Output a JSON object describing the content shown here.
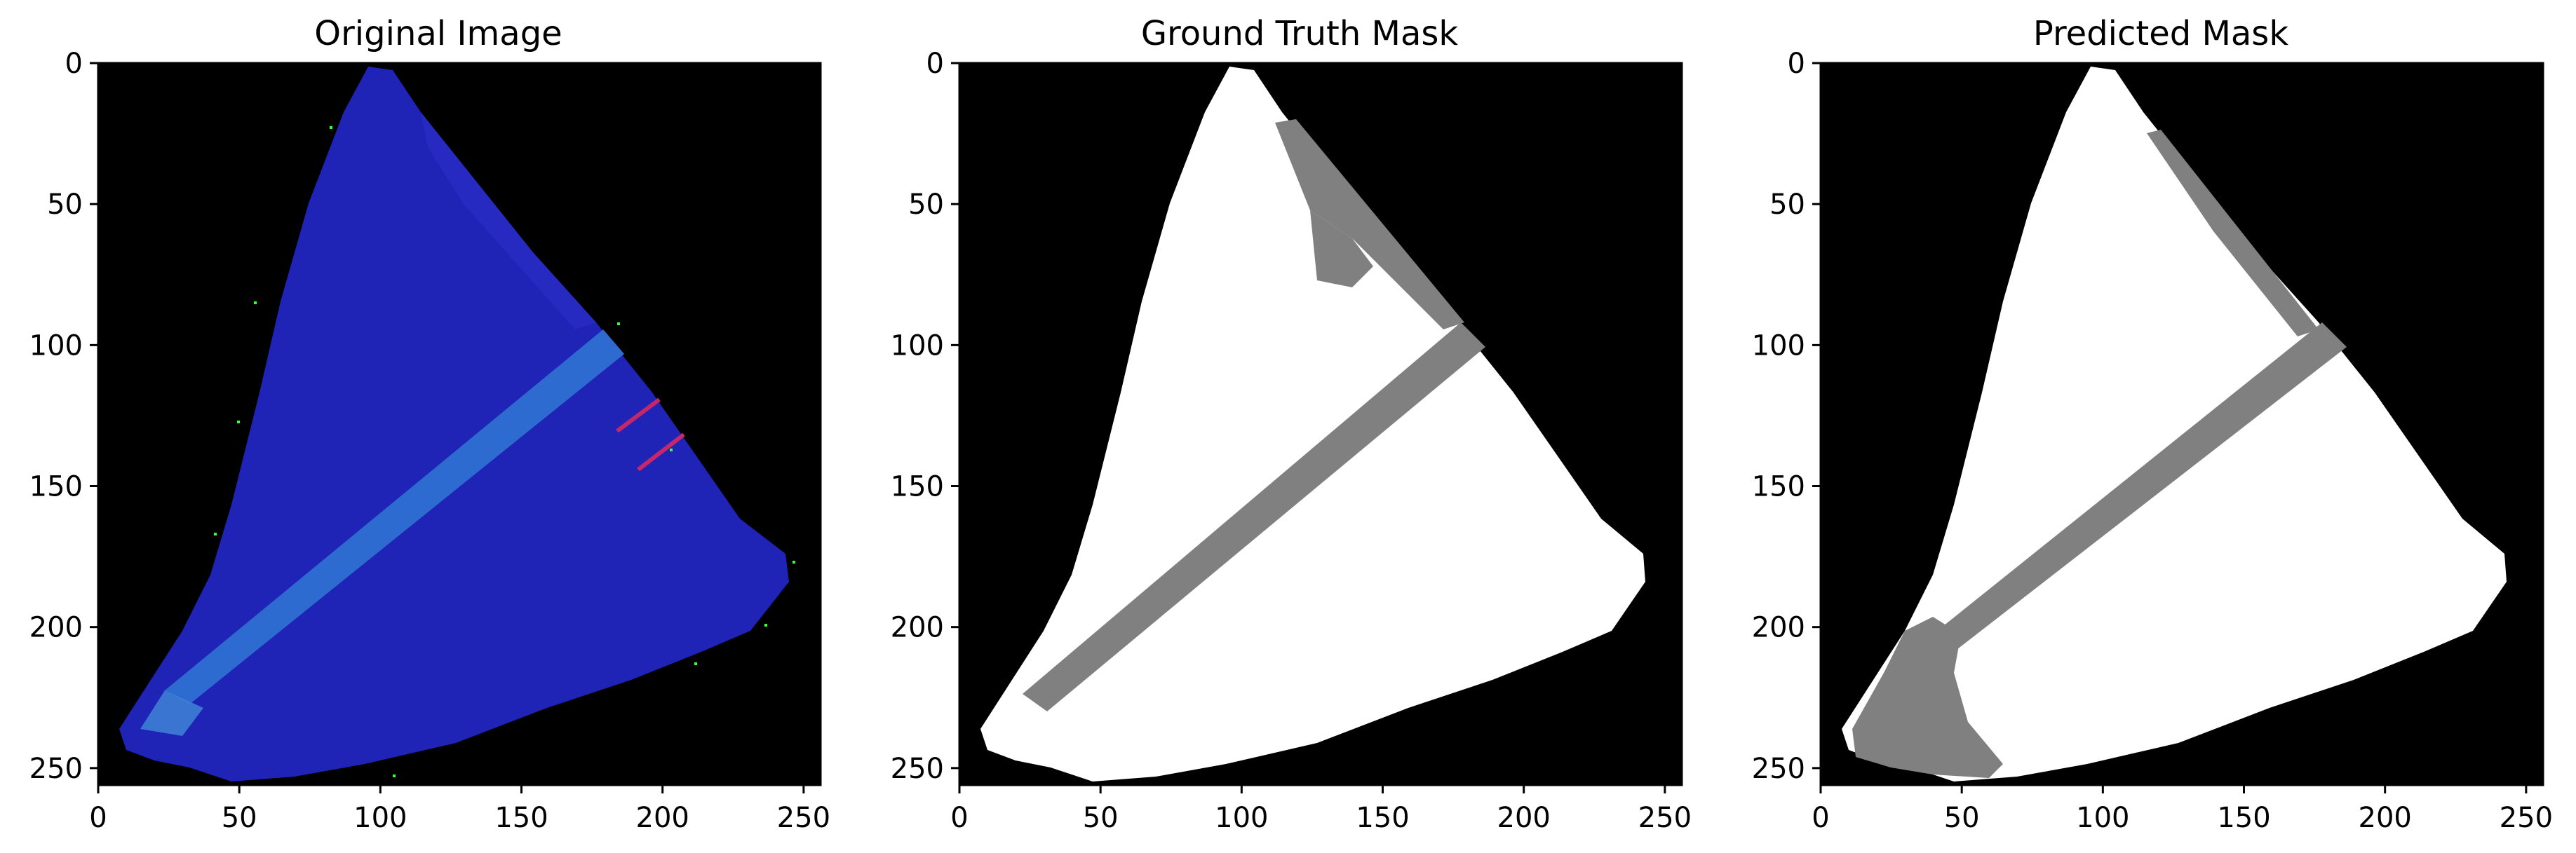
{
  "panels": [
    {
      "title": "Original Image",
      "kind": "image"
    },
    {
      "title": "Ground Truth Mask",
      "kind": "gt"
    },
    {
      "title": "Predicted Mask",
      "kind": "pred"
    }
  ],
  "axis": {
    "x_ticks": [
      "0",
      "50",
      "100",
      "150",
      "200",
      "250"
    ],
    "y_ticks": [
      "0",
      "50",
      "100",
      "150",
      "200",
      "250"
    ]
  },
  "colors": {
    "background": "#000000",
    "tissue_blue": "#1f23b6",
    "stripe_blue": "#2e6bd0",
    "mask_white": "#ffffff",
    "mask_gray": "#808080"
  },
  "chart_data": {
    "type": "image",
    "xlim": [
      0,
      256
    ],
    "ylim": [
      256,
      0
    ]
  }
}
